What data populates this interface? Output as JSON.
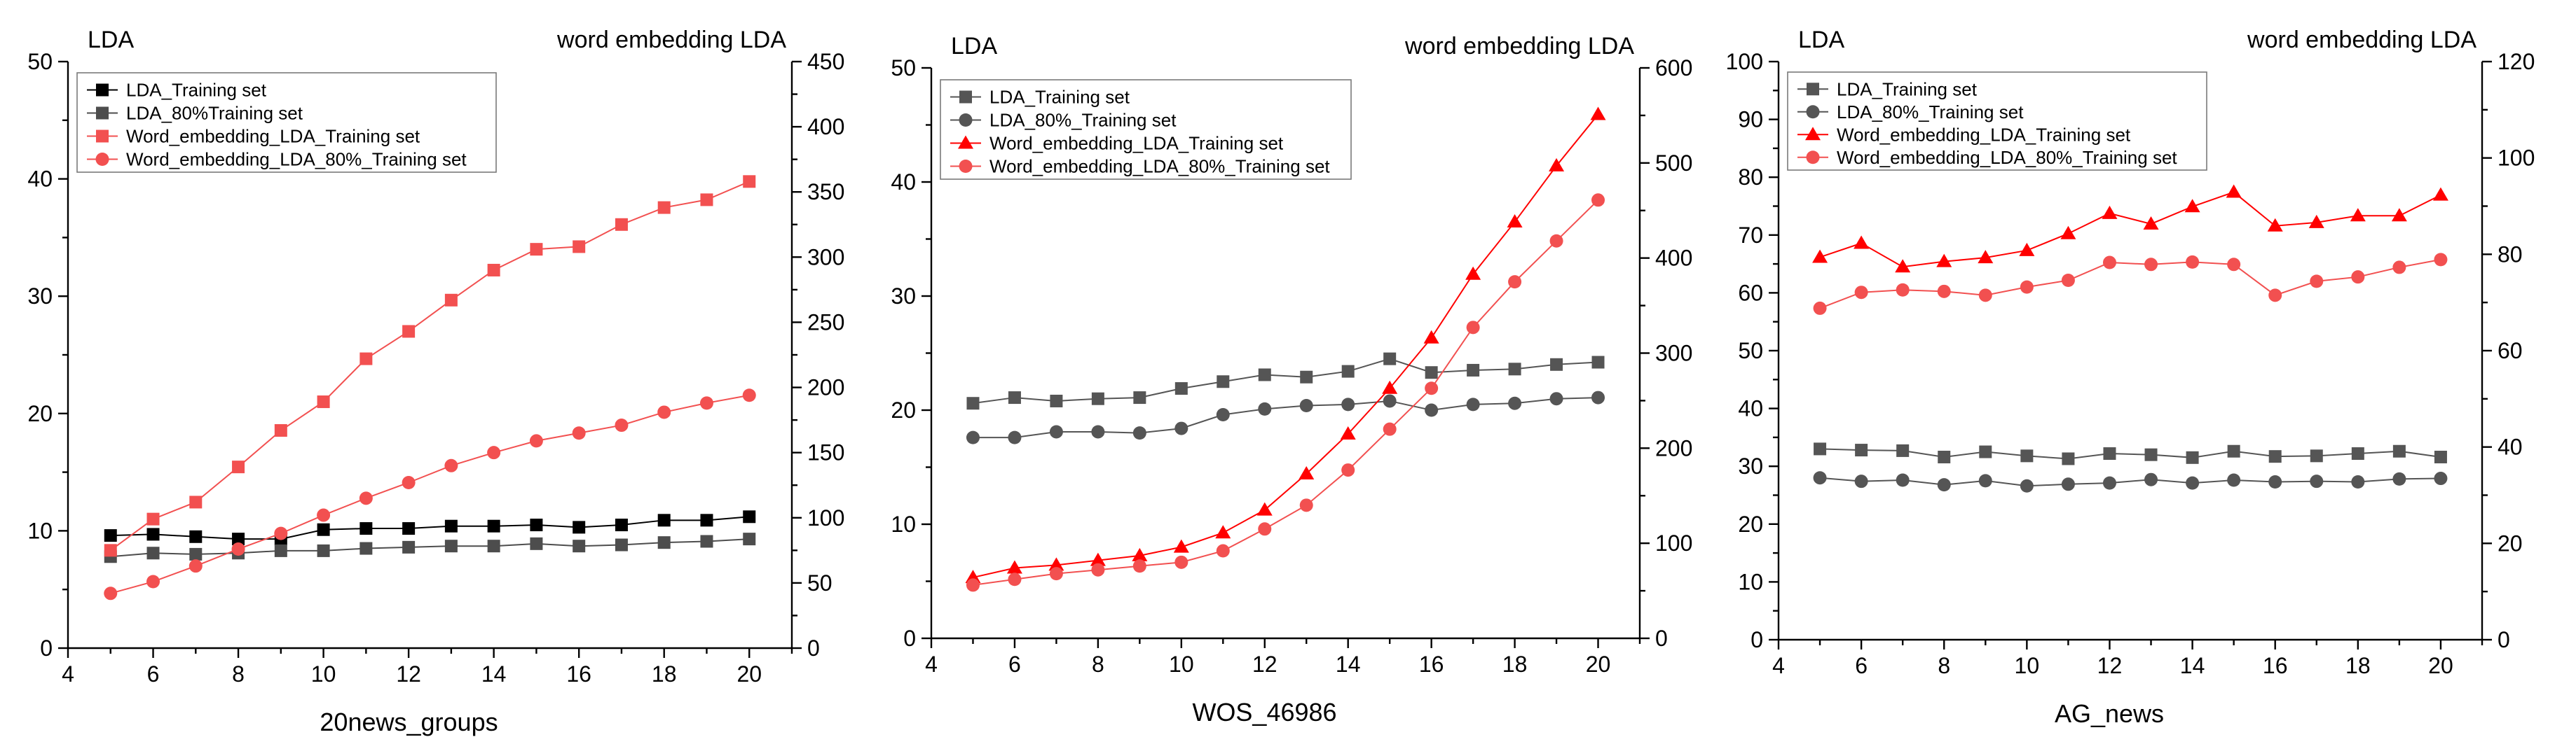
{
  "chart_data": [
    {
      "type": "line",
      "left_axis_title": "LDA",
      "right_axis_title": "word embedding LDA",
      "xlabel": "20news_groups",
      "xlim": [
        4,
        21
      ],
      "x_ticks": [
        4,
        6,
        8,
        10,
        12,
        14,
        16,
        18,
        20
      ],
      "y_left_lim": [
        0,
        50
      ],
      "y_left_ticks": [
        0,
        10,
        20,
        30,
        40,
        50
      ],
      "y_right_lim": [
        0,
        450
      ],
      "y_right_ticks": [
        0,
        50,
        100,
        150,
        200,
        250,
        300,
        350,
        400,
        450
      ],
      "legend_position": "top-left",
      "x": [
        5,
        6,
        7,
        8,
        9,
        10,
        11,
        12,
        13,
        14,
        15,
        16,
        17,
        18,
        19,
        20
      ],
      "series": [
        {
          "name": "LDA_Training set",
          "axis": "left",
          "color": "#000000",
          "marker": "square",
          "values": [
            9.6,
            9.7,
            9.5,
            9.3,
            9.3,
            10.1,
            10.2,
            10.2,
            10.4,
            10.4,
            10.5,
            10.3,
            10.5,
            10.9,
            10.9,
            11.2
          ]
        },
        {
          "name": "LDA_80%Training set",
          "axis": "left",
          "color": "#4d4d4d",
          "marker": "square",
          "values": [
            7.8,
            8.1,
            8.0,
            8.1,
            8.3,
            8.3,
            8.5,
            8.6,
            8.7,
            8.7,
            8.9,
            8.7,
            8.8,
            9.0,
            9.1,
            9.3
          ]
        },
        {
          "name": "Word_embedding_LDA_Training set",
          "axis": "right",
          "color": "#f25050",
          "marker": "square",
          "values": [
            75,
            99,
            112,
            139,
            167,
            189,
            222,
            243,
            267,
            290,
            306,
            308,
            325,
            338,
            344,
            358
          ]
        },
        {
          "name": "Word_embedding_LDA_80%_Training set",
          "axis": "right",
          "color": "#f25050",
          "marker": "circle",
          "values": [
            42,
            51,
            63,
            76,
            88,
            102,
            115,
            127,
            140,
            150,
            159,
            165,
            171,
            181,
            188,
            194
          ]
        }
      ]
    },
    {
      "type": "line",
      "left_axis_title": "LDA",
      "right_axis_title": "word embedding LDA",
      "xlabel": "WOS_46986",
      "xlim": [
        4,
        21
      ],
      "x_ticks": [
        4,
        6,
        8,
        10,
        12,
        14,
        16,
        18,
        20
      ],
      "y_left_lim": [
        0,
        50
      ],
      "y_left_ticks": [
        0,
        10,
        20,
        30,
        40,
        50
      ],
      "y_right_lim": [
        0,
        600
      ],
      "y_right_ticks": [
        0,
        100,
        200,
        300,
        400,
        500,
        600
      ],
      "legend_position": "top-left",
      "x": [
        5,
        6,
        7,
        8,
        9,
        10,
        11,
        12,
        13,
        14,
        15,
        16,
        17,
        18,
        19,
        20
      ],
      "series": [
        {
          "name": "LDA_Training set",
          "axis": "left",
          "color": "#555555",
          "marker": "square",
          "values": [
            20.6,
            21.1,
            20.8,
            21.0,
            21.1,
            21.9,
            22.5,
            23.1,
            22.9,
            23.4,
            24.5,
            23.3,
            23.5,
            23.6,
            24.0,
            24.2
          ]
        },
        {
          "name": "LDA_80%_Training set",
          "axis": "left",
          "color": "#555555",
          "marker": "circle",
          "values": [
            17.6,
            17.6,
            18.1,
            18.1,
            18.0,
            18.4,
            19.6,
            20.1,
            20.4,
            20.5,
            20.8,
            20.0,
            20.5,
            20.6,
            21.0,
            21.1
          ]
        },
        {
          "name": "Word_embedding_LDA_Training set",
          "axis": "right",
          "color": "#ff0000",
          "marker": "triangle",
          "values": [
            64,
            74,
            77,
            82,
            87,
            96,
            111,
            135,
            173,
            215,
            263,
            316,
            383,
            438,
            497,
            551
          ]
        },
        {
          "name": "Word_embedding_LDA_80%_Training set",
          "axis": "right",
          "color": "#f25050",
          "marker": "circle",
          "values": [
            56,
            62,
            68,
            72,
            76,
            80,
            92,
            115,
            140,
            177,
            220,
            263,
            327,
            375,
            418,
            461
          ]
        }
      ]
    },
    {
      "type": "line",
      "left_axis_title": "LDA",
      "right_axis_title": "word embedding LDA",
      "xlabel": "AG_news",
      "xlim": [
        4,
        21
      ],
      "x_ticks": [
        4,
        6,
        8,
        10,
        12,
        14,
        16,
        18,
        20
      ],
      "y_left_lim": [
        0,
        100
      ],
      "y_left_ticks": [
        0,
        10,
        20,
        30,
        40,
        50,
        60,
        70,
        80,
        90,
        100
      ],
      "y_right_lim": [
        0,
        120
      ],
      "y_right_ticks": [
        0,
        20,
        40,
        60,
        80,
        100,
        120
      ],
      "legend_position": "top-left",
      "x": [
        5,
        6,
        7,
        8,
        9,
        10,
        11,
        12,
        13,
        14,
        15,
        16,
        17,
        18,
        19,
        20
      ],
      "series": [
        {
          "name": "LDA_Training set",
          "axis": "left",
          "color": "#555555",
          "marker": "square",
          "values": [
            33.0,
            32.8,
            32.7,
            31.6,
            32.5,
            31.8,
            31.3,
            32.2,
            32.0,
            31.5,
            32.6,
            31.7,
            31.8,
            32.2,
            32.6,
            31.6
          ]
        },
        {
          "name": "LDA_80%_Training set",
          "axis": "left",
          "color": "#555555",
          "marker": "circle",
          "values": [
            28.0,
            27.4,
            27.6,
            26.8,
            27.5,
            26.6,
            26.9,
            27.1,
            27.7,
            27.1,
            27.6,
            27.3,
            27.4,
            27.3,
            27.8,
            27.9
          ]
        },
        {
          "name": "Word_embedding_LDA_Training set",
          "axis": "right",
          "color": "#ff0000",
          "marker": "triangle",
          "values": [
            79.4,
            82.3,
            77.4,
            78.5,
            79.3,
            80.8,
            84.3,
            88.5,
            86.3,
            89.9,
            92.9,
            85.9,
            86.6,
            88.0,
            88.0,
            92.3
          ]
        },
        {
          "name": "Word_embedding_LDA_80%_Training set",
          "axis": "right",
          "color": "#f25050",
          "marker": "circle",
          "values": [
            68.8,
            72.1,
            72.6,
            72.3,
            71.5,
            73.2,
            74.6,
            78.3,
            77.9,
            78.4,
            77.9,
            71.5,
            74.4,
            75.3,
            77.3,
            78.9
          ]
        }
      ]
    }
  ]
}
